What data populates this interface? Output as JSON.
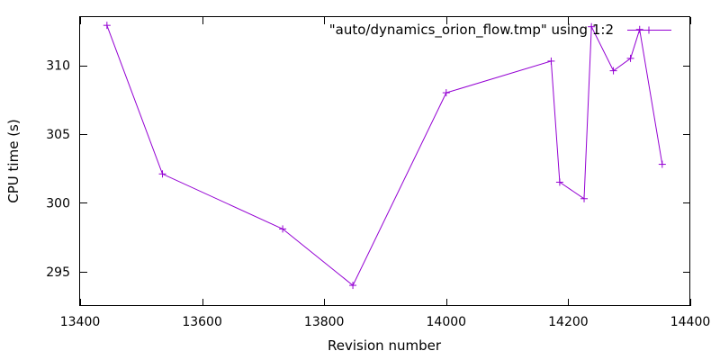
{
  "chart_data": {
    "type": "line",
    "title": "",
    "xlabel": "Revision number",
    "ylabel": "CPU time (s)",
    "xlim": [
      13400,
      14400
    ],
    "ylim": [
      292.5,
      313.5
    ],
    "x_ticks": [
      13400,
      13600,
      13800,
      14000,
      14200,
      14400
    ],
    "y_ticks": [
      295,
      300,
      305,
      310
    ],
    "grid": false,
    "legend_position": "top-right",
    "series": [
      {
        "name": "\"auto/dynamics_orion_flow.tmp\" using 1:2",
        "color": "#9400D3",
        "marker": "plus",
        "x": [
          13444,
          13535,
          13732,
          13847,
          14000,
          14172,
          14186,
          14226,
          14238,
          14274,
          14302,
          14317,
          14354
        ],
        "y": [
          312.9,
          302.1,
          298.1,
          294.0,
          308.0,
          310.3,
          301.5,
          300.3,
          312.8,
          309.6,
          310.5,
          312.6,
          302.8
        ]
      }
    ]
  }
}
